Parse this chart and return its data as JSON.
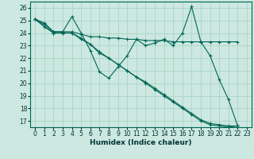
{
  "xlabel": "Humidex (Indice chaleur)",
  "bg_color": "#cce8e0",
  "grid_color": "#aad4c8",
  "line_color": "#006655",
  "xlim": [
    -0.5,
    23.5
  ],
  "ylim": [
    16.5,
    26.5
  ],
  "yticks": [
    17,
    18,
    19,
    20,
    21,
    22,
    23,
    24,
    25,
    26
  ],
  "xticks": [
    0,
    1,
    2,
    3,
    4,
    5,
    6,
    7,
    8,
    9,
    10,
    11,
    12,
    13,
    14,
    15,
    16,
    17,
    18,
    19,
    20,
    21,
    22,
    23
  ],
  "series": [
    {
      "x": [
        0,
        1,
        2,
        3,
        4,
        5,
        6,
        7,
        8,
        9,
        10,
        11,
        12,
        13,
        14,
        15,
        16,
        17,
        18,
        19,
        20,
        21,
        22
      ],
      "y": [
        25.1,
        24.8,
        24.1,
        24.1,
        25.3,
        24.0,
        22.6,
        20.9,
        20.4,
        21.3,
        22.2,
        23.5,
        23.0,
        23.2,
        23.5,
        23.0,
        24.0,
        26.1,
        23.3,
        22.2,
        20.3,
        18.7,
        16.6
      ]
    },
    {
      "x": [
        0,
        1,
        2,
        3,
        4,
        5,
        6,
        7,
        8,
        9,
        10,
        11,
        12,
        13,
        14,
        15,
        16,
        17,
        18,
        19,
        20,
        21,
        22
      ],
      "y": [
        25.1,
        24.7,
        24.1,
        24.1,
        24.1,
        23.9,
        23.7,
        23.7,
        23.6,
        23.6,
        23.5,
        23.5,
        23.4,
        23.4,
        23.4,
        23.3,
        23.3,
        23.3,
        23.3,
        23.3,
        23.3,
        23.3,
        23.3
      ]
    },
    {
      "x": [
        0,
        2,
        3,
        4,
        5,
        6,
        7,
        8,
        9,
        10,
        11,
        12,
        13,
        14,
        15,
        16,
        17,
        18,
        19,
        20,
        21,
        22
      ],
      "y": [
        25.1,
        24.0,
        24.0,
        24.0,
        23.6,
        23.1,
        22.4,
        22.0,
        21.5,
        21.0,
        20.5,
        20.0,
        19.5,
        19.0,
        18.5,
        18.0,
        17.5,
        17.0,
        16.7,
        16.6,
        16.5,
        16.6
      ]
    },
    {
      "x": [
        0,
        1,
        2,
        3,
        4,
        5,
        6,
        7,
        8,
        9,
        10,
        11,
        12,
        13,
        14,
        15,
        16,
        17,
        18,
        19,
        20,
        21,
        22
      ],
      "y": [
        25.1,
        24.5,
        24.0,
        24.0,
        24.0,
        23.5,
        23.1,
        22.5,
        22.0,
        21.5,
        21.0,
        20.5,
        20.1,
        19.6,
        19.1,
        18.6,
        18.1,
        17.6,
        17.1,
        16.8,
        16.7,
        16.6,
        16.6
      ]
    }
  ]
}
